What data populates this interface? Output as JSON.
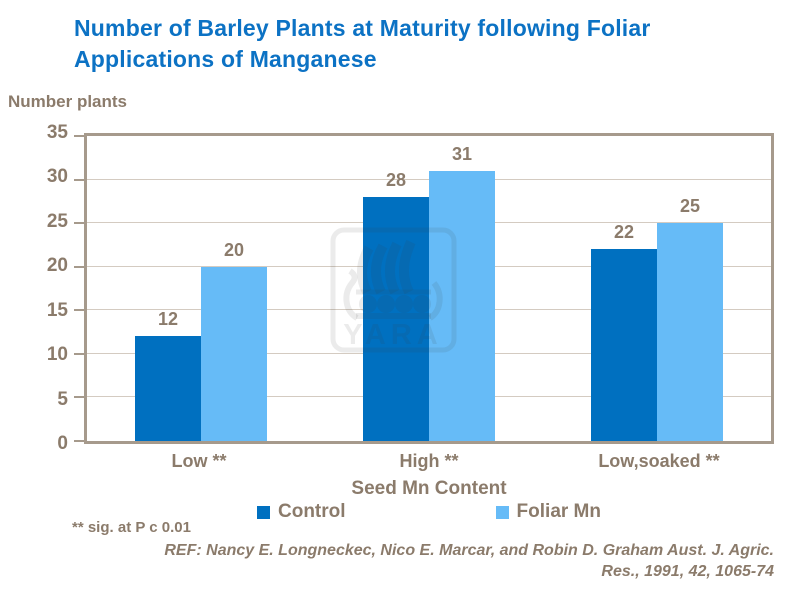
{
  "title": {
    "line1": "Number of Barley Plants at Maturity following Foliar",
    "line2": "Applications of Manganese"
  },
  "chart_data": {
    "type": "bar",
    "title": "Number of Barley Plants at Maturity following Foliar Applications of Manganese",
    "categories": [
      "Low **",
      "High **",
      "Low,soaked **"
    ],
    "series": [
      {
        "name": "Control",
        "color": "#0070c0",
        "values": [
          12,
          28,
          22
        ]
      },
      {
        "name": "Foliar Mn",
        "color": "#66bbf7",
        "values": [
          20,
          31,
          25
        ]
      }
    ],
    "xlabel": "Seed Mn Content",
    "ylabel": "Number plants",
    "ylim": [
      0,
      35
    ],
    "yticks": [
      0,
      5,
      10,
      15,
      20,
      25,
      30,
      35
    ],
    "grid": true,
    "legend_position": "bottom"
  },
  "footnote": "** sig. at P c 0.01",
  "reference": {
    "line1": "REF: Nancy E. Longneckec, Nico E. Marcar, and Robin D. Graham Aust. J. Agric.",
    "line2": "Res., 1991, 42, 1065-74"
  },
  "watermark": {
    "text": "YARA"
  },
  "colors": {
    "title_blue": "#0c72c4",
    "text_brown": "#8b7b6b",
    "control_bar": "#0070c0",
    "foliar_bar": "#66bbf7",
    "axis_border": "#a69a8c",
    "gridline": "#d4cbc1"
  }
}
